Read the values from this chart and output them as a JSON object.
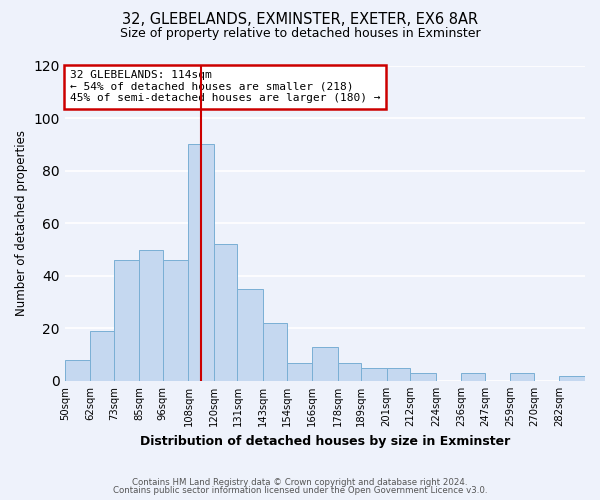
{
  "title": "32, GLEBELANDS, EXMINSTER, EXETER, EX6 8AR",
  "subtitle": "Size of property relative to detached houses in Exminster",
  "xlabel": "Distribution of detached houses by size in Exminster",
  "ylabel": "Number of detached properties",
  "bar_color": "#c5d8f0",
  "bar_edge_color": "#7aafd4",
  "background_color": "#eef2fb",
  "bin_edges": [
    50,
    62,
    73,
    85,
    96,
    108,
    120,
    131,
    143,
    154,
    166,
    178,
    189,
    201,
    212,
    224,
    236,
    247,
    259,
    270,
    282,
    294
  ],
  "bin_labels": [
    "50sqm",
    "62sqm",
    "73sqm",
    "85sqm",
    "96sqm",
    "108sqm",
    "120sqm",
    "131sqm",
    "143sqm",
    "154sqm",
    "166sqm",
    "178sqm",
    "189sqm",
    "201sqm",
    "212sqm",
    "224sqm",
    "236sqm",
    "247sqm",
    "259sqm",
    "270sqm",
    "282sqm"
  ],
  "heights": [
    8,
    19,
    46,
    50,
    46,
    90,
    52,
    35,
    22,
    7,
    13,
    7,
    5,
    5,
    3,
    0,
    3,
    0,
    3,
    0,
    2
  ],
  "vline_x": 114,
  "vline_color": "#cc0000",
  "annotation_text": "32 GLEBELANDS: 114sqm\n← 54% of detached houses are smaller (218)\n45% of semi-detached houses are larger (180) →",
  "annotation_box_color": "#ffffff",
  "annotation_box_edge_color": "#cc0000",
  "ylim": [
    0,
    120
  ],
  "yticks": [
    0,
    20,
    40,
    60,
    80,
    100,
    120
  ],
  "footer_line1": "Contains HM Land Registry data © Crown copyright and database right 2024.",
  "footer_line2": "Contains public sector information licensed under the Open Government Licence v3.0."
}
